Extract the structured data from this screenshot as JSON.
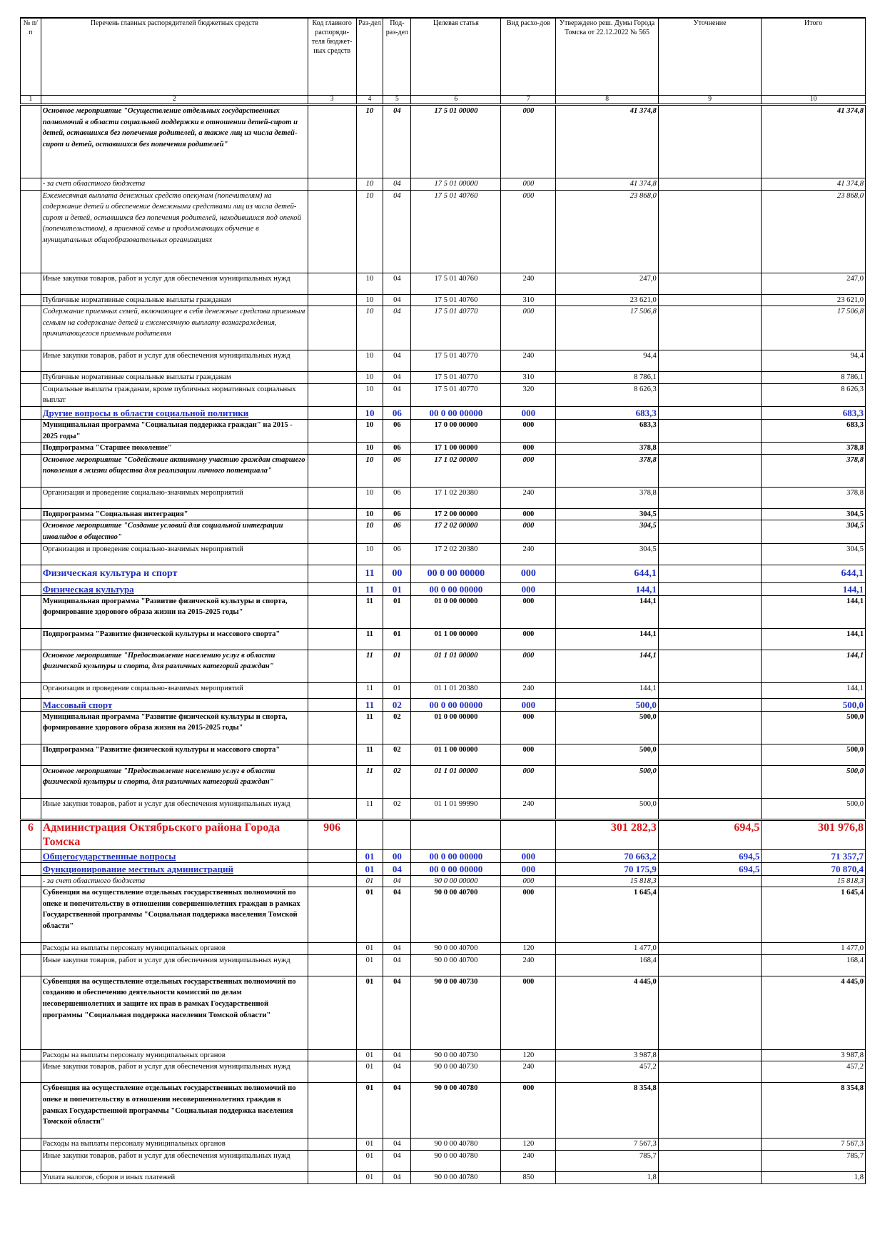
{
  "header": {
    "cols": [
      "№ п/п",
      "Перечень главных распорядителей бюджетных средств",
      "Код главного распоряди-теля бюджет-ных средств",
      "Раз-дел",
      "Под-раз-дел",
      "Целевая статья",
      "Вид расхо-дов",
      "Утверждено реш. Думы Города Томска от 22.12.2022 № 565",
      "Уточнение",
      "Итого"
    ],
    "nums": [
      "1",
      "2",
      "3",
      "4",
      "5",
      "6",
      "7",
      "8",
      "9",
      "10"
    ]
  },
  "rows": [
    {
      "style": "bi",
      "h": 103,
      "name": "Основное мероприятие \"Осуществление отдельных государственных полномочий в области социальной поддержки в отношении детей-сирот и детей, оставшихся без попечения родителей, а также лиц из числа детей-сирот и детей, оставшихся без попечения родителей\"",
      "code": "",
      "sec": "10",
      "sub": "04",
      "target": "17 5 01 00000",
      "kind": "000",
      "approved": "41 374,8",
      "change": "",
      "total": "41 374,8"
    },
    {
      "style": "i",
      "h": 15,
      "name": " - за счет областного бюджета",
      "code": "",
      "sec": "10",
      "sub": "04",
      "target": "17 5 01 00000",
      "kind": "000",
      "approved": "41 374,8",
      "change": "",
      "total": "41 374,8"
    },
    {
      "style": "i",
      "h": 116,
      "name": "Ежемесячная выплата денежных средств опекунам (попечителям) на содержание детей и обеспечение денежными средствами лиц из числа детей-сирот и детей, оставшихся без попечения родителей, находившихся под опекой (попечительством), в приемной семье и продолжающих обучение в муниципальных общеобразовательных организациях",
      "code": "",
      "sec": "10",
      "sub": "04",
      "target": "17 5 01 40760",
      "kind": "000",
      "approved": "23 868,0",
      "change": "",
      "total": "23 868,0"
    },
    {
      "style": "",
      "h": 30,
      "name": "Иные закупки товаров, работ и услуг для обеспечения муниципальных нужд",
      "code": "",
      "sec": "10",
      "sub": "04",
      "target": "17 5 01 40760",
      "kind": "240",
      "approved": "247,0",
      "change": "",
      "total": "247,0"
    },
    {
      "style": "",
      "h": 15,
      "name": "Публичные нормативные социальные выплаты гражданам",
      "code": "",
      "sec": "10",
      "sub": "04",
      "target": "17 5 01 40760",
      "kind": "310",
      "approved": "23 621,0",
      "change": "",
      "total": "23 621,0"
    },
    {
      "style": "i",
      "h": 62,
      "name": "Содержание приемных семей, включающее в себя денежные средства приемным семьям на содержание детей и ежемесячную выплату вознаграждения, причитающегося приемным родителям",
      "code": "",
      "sec": "10",
      "sub": "04",
      "target": "17 5 01 40770",
      "kind": "000",
      "approved": "17 506,8",
      "change": "",
      "total": "17 506,8"
    },
    {
      "style": "",
      "h": 30,
      "name": "Иные закупки товаров, работ и услуг для обеспечения муниципальных нужд",
      "code": "",
      "sec": "10",
      "sub": "04",
      "target": "17 5 01 40770",
      "kind": "240",
      "approved": "94,4",
      "change": "",
      "total": "94,4"
    },
    {
      "style": "",
      "h": 15,
      "name": "Публичные нормативные социальные выплаты гражданам",
      "code": "",
      "sec": "10",
      "sub": "04",
      "target": "17 5 01 40770",
      "kind": "310",
      "approved": "8 786,1",
      "change": "",
      "total": "8 786,1"
    },
    {
      "style": "",
      "h": 30,
      "name": "Социальные выплаты гражданам, кроме публичных нормативных социальных выплат",
      "code": "",
      "sec": "10",
      "sub": "04",
      "target": "17 5 01 40770",
      "kind": "320",
      "approved": "8 626,3",
      "change": "",
      "total": "8 626,3"
    },
    {
      "style": "sec",
      "h": 15,
      "name": "Другие вопросы в области социальной политики",
      "code": "",
      "sec": "10",
      "sub": "06",
      "target": "00 0 00 00000",
      "kind": "000",
      "approved": "683,3",
      "change": "",
      "total": "683,3"
    },
    {
      "style": "b",
      "h": 30,
      "name": "Муниципальная программа \"Социальная поддержка граждан\" на 2015 - 2025 годы\"",
      "code": "",
      "sec": "10",
      "sub": "06",
      "target": "17 0 00 00000",
      "kind": "000",
      "approved": "683,3",
      "change": "",
      "total": "683,3"
    },
    {
      "style": "b",
      "h": 15,
      "name": "Подпрограмма \"Старшее поколение\"",
      "code": "",
      "sec": "10",
      "sub": "06",
      "target": "17 1 00 00000",
      "kind": "000",
      "approved": "378,8",
      "change": "",
      "total": "378,8"
    },
    {
      "style": "bi",
      "h": 46,
      "name": "Основное мероприятие \"Содействие активному участию граждан старшего поколения в жизни общества для реализации личного потенциала\"",
      "code": "",
      "sec": "10",
      "sub": "06",
      "target": "17 1 02 00000",
      "kind": "000",
      "approved": "378,8",
      "change": "",
      "total": "378,8"
    },
    {
      "style": "",
      "h": 30,
      "name": "Организация и проведение социально-значимых мероприятий",
      "code": "",
      "sec": "10",
      "sub": "06",
      "target": "17 1 02 20380",
      "kind": "240",
      "approved": "378,8",
      "change": "",
      "total": "378,8"
    },
    {
      "style": "b",
      "h": 15,
      "name": "Подпрограмма \"Социальная интеграция\"",
      "code": "",
      "sec": "10",
      "sub": "06",
      "target": "17 2 00 00000",
      "kind": "000",
      "approved": "304,5",
      "change": "",
      "total": "304,5"
    },
    {
      "style": "bi",
      "h": 30,
      "name": "Основное мероприятие \"Создание условий для социальной интеграции инвалидов в общество\"",
      "code": "",
      "sec": "10",
      "sub": "06",
      "target": "17 2 02 00000",
      "kind": "000",
      "approved": "304,5",
      "change": "",
      "total": "304,5"
    },
    {
      "style": "",
      "h": 30,
      "name": "Организация и проведение социально-значимых мероприятий",
      "code": "",
      "sec": "10",
      "sub": "06",
      "target": "17 2 02 20380",
      "kind": "240",
      "approved": "304,5",
      "change": "",
      "total": "304,5"
    },
    {
      "style": "sec big",
      "h": 22,
      "name": "Физическая культура и спорт",
      "code": "",
      "sec": "11",
      "sub": "00",
      "target": "00 0 00 00000",
      "kind": "000",
      "approved": "644,1",
      "change": "",
      "total": "644,1"
    },
    {
      "style": "sec",
      "h": 15,
      "name": "Физическая культура",
      "code": "",
      "sec": "11",
      "sub": "01",
      "target": "00 0 00 00000",
      "kind": "000",
      "approved": "144,1",
      "change": "",
      "total": "144,1"
    },
    {
      "style": "b",
      "h": 46,
      "name": "Муниципальная программа \"Развитие физической культуры и спорта, формирование здорового образа жизни на 2015-2025 годы\"",
      "code": "",
      "sec": "11",
      "sub": "01",
      "target": "01 0 00 00000",
      "kind": "000",
      "approved": "144,1",
      "change": "",
      "total": "144,1"
    },
    {
      "style": "b",
      "h": 30,
      "name": "Подпрограмма \"Развитие физической культуры и массового спорта\"",
      "code": "",
      "sec": "11",
      "sub": "01",
      "target": "01 1 00 00000",
      "kind": "000",
      "approved": "144,1",
      "change": "",
      "total": "144,1"
    },
    {
      "style": "bi",
      "h": 46,
      "name": "Основное мероприятие \"Предоставление населению услуг в области физической культуры и спорта, для различных категорий граждан\"",
      "code": "",
      "sec": "11",
      "sub": "01",
      "target": "01 1 01 00000",
      "kind": "000",
      "approved": "144,1",
      "change": "",
      "total": "144,1"
    },
    {
      "style": "",
      "h": 22,
      "name": "Организация и проведение социально-значимых мероприятий",
      "code": "",
      "sec": "11",
      "sub": "01",
      "target": "01 1 01 20380",
      "kind": "240",
      "approved": "144,1",
      "change": "",
      "total": "144,1"
    },
    {
      "style": "sec",
      "h": 15,
      "name": "Массовый спорт",
      "code": "",
      "sec": "11",
      "sub": "02",
      "target": "00 0 00 00000",
      "kind": "000",
      "approved": "500,0",
      "change": "",
      "total": "500,0"
    },
    {
      "style": "b",
      "h": 46,
      "name": "Муниципальная программа \"Развитие физической культуры и спорта, формирование здорового образа жизни на 2015-2025 годы\"",
      "code": "",
      "sec": "11",
      "sub": "02",
      "target": "01 0 00 00000",
      "kind": "000",
      "approved": "500,0",
      "change": "",
      "total": "500,0"
    },
    {
      "style": "b",
      "h": 30,
      "name": "Подпрограмма \"Развитие физической культуры и массового спорта\"",
      "code": "",
      "sec": "11",
      "sub": "02",
      "target": "01 1 00 00000",
      "kind": "000",
      "approved": "500,0",
      "change": "",
      "total": "500,0"
    },
    {
      "style": "bi",
      "h": 46,
      "name": "Основное мероприятие \"Предоставление населению услуг в области физической культуры и спорта, для различных категорий граждан\"",
      "code": "",
      "sec": "11",
      "sub": "02",
      "target": "01 1 01 00000",
      "kind": "000",
      "approved": "500,0",
      "change": "",
      "total": "500,0"
    },
    {
      "style": "",
      "h": 30,
      "name": "Иные закупки товаров, работ и услуг для обеспечения муниципальных нужд",
      "code": "",
      "sec": "11",
      "sub": "02",
      "target": "01 1 01 99990",
      "kind": "240",
      "approved": "500,0",
      "change": "",
      "total": "500,0"
    },
    {
      "style": "admin",
      "h": 40,
      "num": "6",
      "name": "Администрация Октябрьского района Города Томска",
      "code": "906",
      "sec": "",
      "sub": "",
      "target": "",
      "kind": "",
      "approved": "301 282,3",
      "change": "694,5",
      "total": "301 976,8"
    },
    {
      "style": "sec",
      "h": 17,
      "name": "Общегосударственные вопросы",
      "code": "",
      "sec": "01",
      "sub": "00",
      "target": "00 0 00 00000",
      "kind": "000",
      "approved": "70 663,2",
      "change": "694,5",
      "total": "71 357,7"
    },
    {
      "style": "sec",
      "h": 15,
      "name": "Функционирование местных администраций",
      "code": "",
      "sec": "01",
      "sub": "04",
      "target": "00 0 00 00000",
      "kind": "000",
      "approved": "70 175,9",
      "change": "694,5",
      "total": "70 870,4"
    },
    {
      "style": "i",
      "h": 15,
      "name": " - за счет областного бюджета",
      "code": "",
      "sec": "01",
      "sub": "04",
      "target": "90 0 00 00000",
      "kind": "000",
      "approved": "15 818,3",
      "change": "",
      "total": "15 818,3"
    },
    {
      "style": "b",
      "h": 78,
      "name": "Субвенция на осуществление отдельных государственных полномочий по опеке и попечительству в отношении совершеннолетних граждан в рамках Государственной программы \"Социальная поддержка населения Томской области\"",
      "code": "",
      "sec": "01",
      "sub": "04",
      "target": "90 0 00 40700",
      "kind": "000",
      "approved": "1 645,4",
      "change": "",
      "total": "1 645,4"
    },
    {
      "style": "",
      "h": 15,
      "name": "Расходы на выплаты персоналу муниципальных органов",
      "code": "",
      "sec": "01",
      "sub": "04",
      "target": "90 0 00 40700",
      "kind": "120",
      "approved": "1 477,0",
      "change": "",
      "total": "1 477,0"
    },
    {
      "style": "",
      "h": 30,
      "name": "Иные закупки товаров, работ и услуг для обеспечения муниципальных нужд",
      "code": "",
      "sec": "01",
      "sub": "04",
      "target": "90 0 00 40700",
      "kind": "240",
      "approved": "168,4",
      "change": "",
      "total": "168,4"
    },
    {
      "style": "b",
      "h": 103,
      "name": "Субвенция на осуществление отдельных государственных полномочий по созданию и обеспечению деятельности комиссий по делам несовершеннолетних и защите их прав в рамках Государственной программы \"Социальная поддержка населения Томской области\"",
      "code": "",
      "sec": "01",
      "sub": "04",
      "target": "90 0 00 40730",
      "kind": "000",
      "approved": "4 445,0",
      "change": "",
      "total": "4 445,0"
    },
    {
      "style": "",
      "h": 15,
      "name": "Расходы на выплаты персоналу муниципальных органов",
      "code": "",
      "sec": "01",
      "sub": "04",
      "target": "90 0 00 40730",
      "kind": "120",
      "approved": "3 987,8",
      "change": "",
      "total": "3 987,8"
    },
    {
      "style": "",
      "h": 30,
      "name": "Иные закупки товаров, работ и услуг для обеспечения муниципальных нужд",
      "code": "",
      "sec": "01",
      "sub": "04",
      "target": "90 0 00 40730",
      "kind": "240",
      "approved": "457,2",
      "change": "",
      "total": "457,2"
    },
    {
      "style": "b",
      "h": 78,
      "name": "Субвенция на осуществление отдельных государственных полномочий по опеке и попечительству в отношении несовершеннолетних граждан в рамках Государственной программы \"Социальная поддержка населения Томской области\"",
      "code": "",
      "sec": "01",
      "sub": "04",
      "target": "90 0 00 40780",
      "kind": "000",
      "approved": "8 354,8",
      "change": "",
      "total": "8 354,8"
    },
    {
      "style": "",
      "h": 15,
      "name": "Расходы на выплаты персоналу муниципальных органов",
      "code": "",
      "sec": "01",
      "sub": "04",
      "target": "90 0 00 40780",
      "kind": "120",
      "approved": "7 567,3",
      "change": "",
      "total": "7 567,3"
    },
    {
      "style": "",
      "h": 30,
      "name": "Иные закупки товаров, работ и услуг для обеспечения муниципальных нужд",
      "code": "",
      "sec": "01",
      "sub": "04",
      "target": "90 0 00 40780",
      "kind": "240",
      "approved": "785,7",
      "change": "",
      "total": "785,7"
    },
    {
      "style": "",
      "h": 15,
      "name": "Уплата налогов, сборов и иных платежей",
      "code": "",
      "sec": "01",
      "sub": "04",
      "target": "90 0 00 40780",
      "kind": "850",
      "approved": "1,8",
      "change": "",
      "total": "1,8"
    }
  ]
}
